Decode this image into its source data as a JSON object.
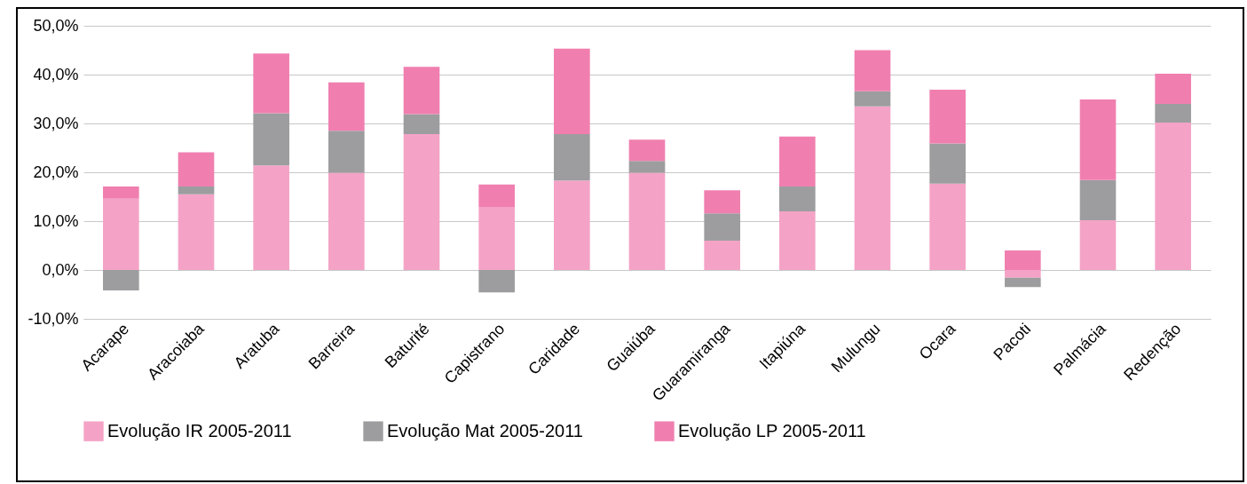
{
  "chart_data": {
    "type": "bar",
    "stacked": true,
    "categories": [
      "Acarape",
      "Aracoiaba",
      "Aratuba",
      "Barreira",
      "Baturité",
      "Capistrano",
      "Caridade",
      "Guaiúba",
      "Guaramiranga",
      "Itapiúna",
      "Mulungu",
      "Ocara",
      "Pacoti",
      "Palmácia",
      "Redenção"
    ],
    "series": [
      {
        "name": "Evolução IR 2005-2011",
        "color": "#f4a3c6",
        "values": [
          14.6,
          15.5,
          21.4,
          19.9,
          27.8,
          12.9,
          18.3,
          19.9,
          6.0,
          12.0,
          33.5,
          17.7,
          -1.6,
          10.2,
          30.2
        ]
      },
      {
        "name": "Evolução Mat 2005-2011",
        "color": "#9d9d9f",
        "values": [
          -4.2,
          1.6,
          10.7,
          8.6,
          4.1,
          -4.6,
          9.5,
          2.4,
          5.6,
          5.1,
          3.1,
          8.2,
          -1.9,
          8.2,
          3.8
        ]
      },
      {
        "name": "Evolução LP 2005-2011",
        "color": "#f07fb0",
        "values": [
          2.5,
          7.0,
          12.2,
          9.9,
          9.7,
          4.6,
          17.5,
          4.4,
          4.7,
          10.2,
          8.4,
          11.0,
          4.0,
          16.5,
          6.2
        ]
      }
    ],
    "ylim": [
      -10,
      50
    ],
    "yticks": [
      {
        "value": -10,
        "label": "-10,0%"
      },
      {
        "value": 0,
        "label": "0,0%"
      },
      {
        "value": 10,
        "label": "10,0%"
      },
      {
        "value": 20,
        "label": "20,0%"
      },
      {
        "value": 30,
        "label": "30,0%"
      },
      {
        "value": 40,
        "label": "40,0%"
      },
      {
        "value": 50,
        "label": "50,0%"
      }
    ],
    "grid": "y",
    "legend": "bottom"
  }
}
